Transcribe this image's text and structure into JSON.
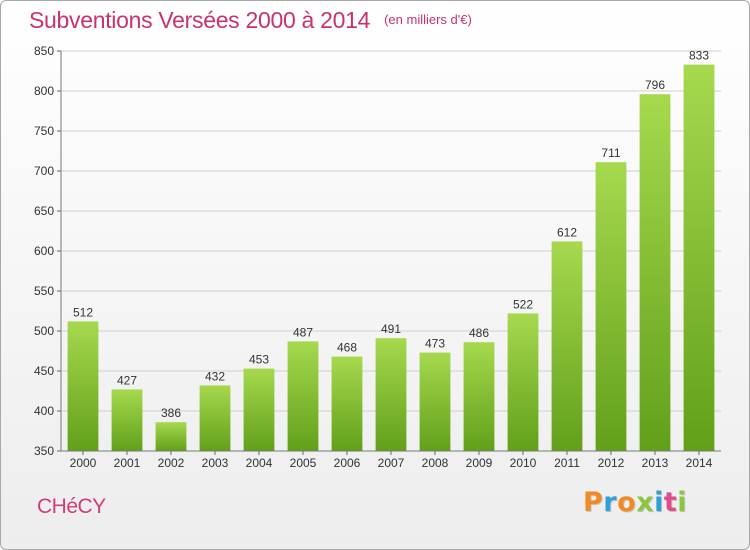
{
  "header": {
    "title": "Subventions Versées 2000 à 2014",
    "subtitle": "(en milliers d'€)"
  },
  "footer": {
    "commune": "CHéCY",
    "logo_letters": [
      "P",
      "r",
      "o",
      "x",
      "i",
      "t",
      "i"
    ],
    "logo_colors": [
      "#ef8a24",
      "#2f9fd8",
      "#ef8a24",
      "#8cc63f",
      "#2f9fd8",
      "#e14b8c",
      "#8cc63f"
    ]
  },
  "colors": {
    "bar_light": "#a6d94e",
    "bar_dark": "#62a01a",
    "title": "#c8326e",
    "grid": "#cfcfcf"
  },
  "chart_data": {
    "type": "bar",
    "title": "Subventions Versées 2000 à 2014",
    "subtitle": "(en milliers d'€)",
    "categories": [
      "2000",
      "2001",
      "2002",
      "2003",
      "2004",
      "2005",
      "2006",
      "2007",
      "2008",
      "2009",
      "2010",
      "2011",
      "2012",
      "2013",
      "2014"
    ],
    "values": [
      512,
      427,
      386,
      432,
      453,
      487,
      468,
      491,
      473,
      486,
      522,
      612,
      711,
      796,
      833
    ],
    "data_labels": [
      "512",
      "427",
      "386",
      "432",
      "453",
      "487",
      "468",
      "491",
      "473",
      "486",
      "522",
      "612",
      "711",
      "796",
      "833"
    ],
    "ylim": [
      350,
      850
    ],
    "yticks": [
      350,
      400,
      450,
      500,
      550,
      600,
      650,
      700,
      750,
      800,
      850
    ],
    "ytick_labels": [
      "350",
      "400",
      "450",
      "500",
      "550",
      "600",
      "650",
      "700",
      "750",
      "800",
      "850"
    ],
    "grid": true,
    "xlabel": "",
    "ylabel": ""
  }
}
